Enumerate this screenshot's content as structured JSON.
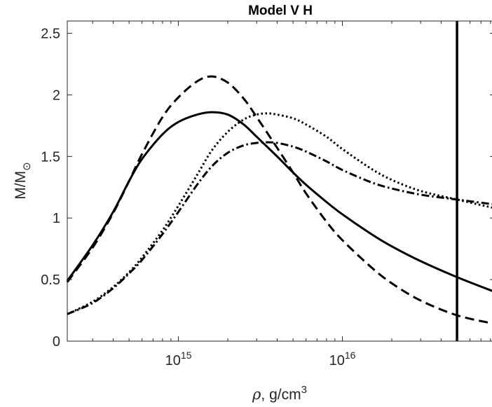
{
  "chart_data": {
    "type": "line",
    "title": "Model V H",
    "xlabel": {
      "symbol": "ρ",
      "text": ", g/cm",
      "sup": "3"
    },
    "ylabel": {
      "main": "M/M",
      "sub": "⊙"
    },
    "xscale": "log",
    "xlim": [
      210000000000000.0,
      8.5e+16
    ],
    "ylim": [
      0,
      2.6
    ],
    "xticks": [
      {
        "value": 1000000000000000.0,
        "base": "10",
        "exp": "15"
      },
      {
        "value": 1e+16,
        "base": "10",
        "exp": "16"
      }
    ],
    "yticks": [
      {
        "value": 0,
        "label": "0"
      },
      {
        "value": 0.5,
        "label": "0.5"
      },
      {
        "value": 1,
        "label": "1"
      },
      {
        "value": 1.5,
        "label": "1.5"
      },
      {
        "value": 2,
        "label": "2"
      },
      {
        "value": 2.5,
        "label": "2.5"
      }
    ],
    "grid": false,
    "series": [
      {
        "style": "solid",
        "x": [
          210000000000000.0,
          300000000000000.0,
          400000000000000.0,
          500000000000000.0,
          600000000000000.0,
          800000000000000.0,
          1000000000000000.0,
          1300000000000000.0,
          1600000000000000.0,
          2000000000000000.0,
          2500000000000000.0,
          3000000000000000.0,
          4000000000000000.0,
          5000000000000000.0,
          6000000000000000.0,
          8000000000000000.0,
          1e+16,
          1.5e+16,
          2e+16,
          3e+16,
          5e+16,
          8.5e+16
        ],
        "y": [
          0.49,
          0.78,
          1.05,
          1.3,
          1.48,
          1.68,
          1.78,
          1.84,
          1.86,
          1.84,
          1.76,
          1.66,
          1.5,
          1.37,
          1.27,
          1.13,
          1.03,
          0.87,
          0.77,
          0.65,
          0.52,
          0.4
        ]
      },
      {
        "style": "dashed",
        "x": [
          210000000000000.0,
          300000000000000.0,
          400000000000000.0,
          500000000000000.0,
          600000000000000.0,
          800000000000000.0,
          1000000000000000.0,
          1300000000000000.0,
          1600000000000000.0,
          2000000000000000.0,
          2500000000000000.0,
          3000000000000000.0,
          4000000000000000.0,
          5000000000000000.0,
          6000000000000000.0,
          8000000000000000.0,
          1e+16,
          1.5e+16,
          2e+16,
          3e+16,
          5e+16,
          8.5e+16
        ],
        "y": [
          0.48,
          0.76,
          1.04,
          1.3,
          1.52,
          1.82,
          1.98,
          2.11,
          2.15,
          2.1,
          1.97,
          1.82,
          1.57,
          1.37,
          1.2,
          0.97,
          0.82,
          0.6,
          0.47,
          0.33,
          0.21,
          0.14
        ]
      },
      {
        "style": "dotted",
        "x": [
          210000000000000.0,
          300000000000000.0,
          400000000000000.0,
          500000000000000.0,
          600000000000000.0,
          800000000000000.0,
          1000000000000000.0,
          1300000000000000.0,
          1600000000000000.0,
          2000000000000000.0,
          2500000000000000.0,
          3000000000000000.0,
          3500000000000000.0,
          4000000000000000.0,
          5000000000000000.0,
          6000000000000000.0,
          8000000000000000.0,
          1e+16,
          1.5e+16,
          2e+16,
          3e+16,
          5e+16,
          8.5e+16
        ],
        "y": [
          0.22,
          0.32,
          0.44,
          0.56,
          0.68,
          0.9,
          1.1,
          1.35,
          1.55,
          1.7,
          1.8,
          1.84,
          1.85,
          1.84,
          1.81,
          1.76,
          1.66,
          1.56,
          1.4,
          1.31,
          1.22,
          1.15,
          1.08
        ]
      },
      {
        "style": "dashdot",
        "x": [
          210000000000000.0,
          300000000000000.0,
          400000000000000.0,
          500000000000000.0,
          600000000000000.0,
          800000000000000.0,
          1000000000000000.0,
          1300000000000000.0,
          1600000000000000.0,
          2000000000000000.0,
          2500000000000000.0,
          3000000000000000.0,
          3500000000000000.0,
          4000000000000000.0,
          5000000000000000.0,
          6000000000000000.0,
          8000000000000000.0,
          1e+16,
          1.5e+16,
          2e+16,
          3e+16,
          5e+16,
          8.5e+16
        ],
        "y": [
          0.22,
          0.31,
          0.43,
          0.55,
          0.66,
          0.87,
          1.05,
          1.27,
          1.42,
          1.53,
          1.59,
          1.61,
          1.615,
          1.61,
          1.58,
          1.54,
          1.46,
          1.39,
          1.29,
          1.24,
          1.19,
          1.15,
          1.11
        ]
      }
    ],
    "vline": {
      "x": 5e+16
    }
  }
}
